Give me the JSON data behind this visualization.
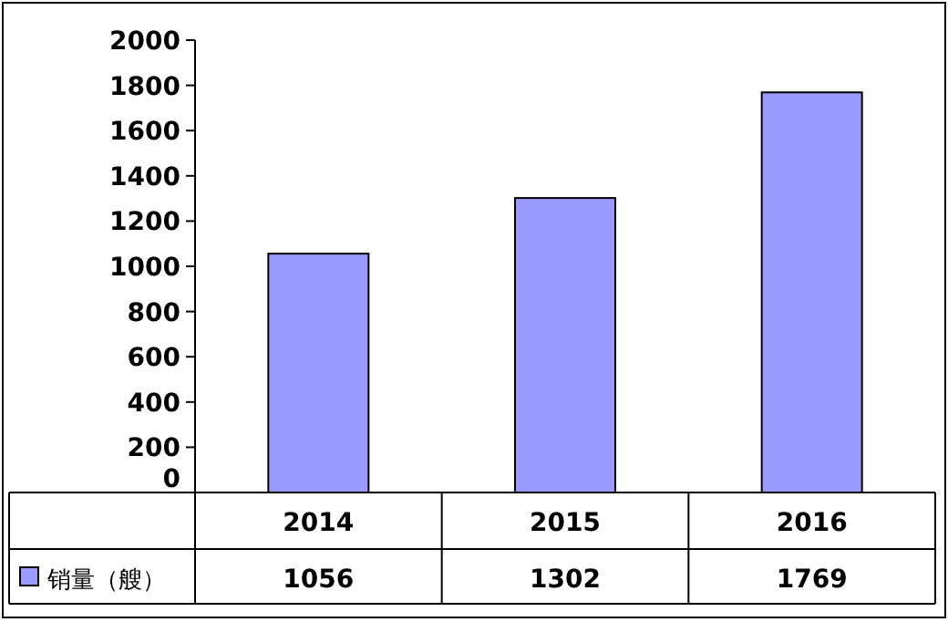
{
  "chart_data": {
    "type": "bar",
    "categories": [
      "2014",
      "2015",
      "2016"
    ],
    "series": [
      {
        "name": "销量（艘）",
        "color": "#9999ff",
        "values": [
          1056,
          1302,
          1769
        ]
      }
    ],
    "ylim": [
      0,
      2000
    ],
    "yticks": [
      0,
      200,
      400,
      600,
      800,
      1000,
      1200,
      1400,
      1600,
      1800,
      2000
    ],
    "data_labels": true,
    "grid": false,
    "legend": "bottom"
  }
}
